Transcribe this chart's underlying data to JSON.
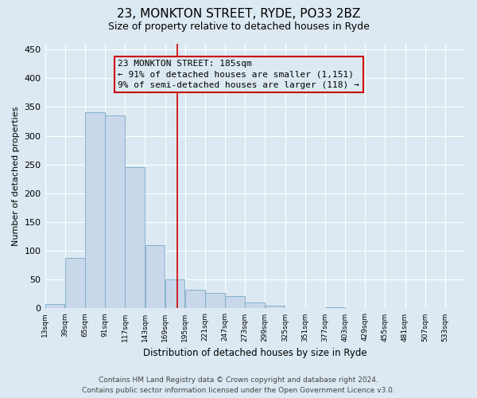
{
  "title": "23, MONKTON STREET, RYDE, PO33 2BZ",
  "subtitle": "Size of property relative to detached houses in Ryde",
  "xlabel": "Distribution of detached houses by size in Ryde",
  "ylabel": "Number of detached properties",
  "bar_starts": [
    13,
    39,
    65,
    91,
    117,
    143,
    169,
    195,
    221,
    247,
    273,
    299,
    325,
    351,
    377,
    403,
    429,
    455,
    481,
    507,
    533
  ],
  "bar_heights": [
    7,
    88,
    341,
    335,
    245,
    110,
    50,
    33,
    27,
    22,
    10,
    5,
    1,
    0,
    2,
    0,
    0,
    1,
    0,
    0,
    1
  ],
  "bin_width": 26,
  "vline_x": 185,
  "bar_color": "#c8d8ea",
  "bar_edge_color": "#7aaac8",
  "vline_color": "#cc0000",
  "annotation_box_edge_color": "#cc0000",
  "annotation_text_line1": "23 MONKTON STREET: 185sqm",
  "annotation_text_line2": "← 91% of detached houses are smaller (1,151)",
  "annotation_text_line3": "9% of semi-detached houses are larger (118) →",
  "ylim": [
    0,
    460
  ],
  "yticks": [
    0,
    50,
    100,
    150,
    200,
    250,
    300,
    350,
    400,
    450
  ],
  "tick_labels": [
    "13sqm",
    "39sqm",
    "65sqm",
    "91sqm",
    "117sqm",
    "143sqm",
    "169sqm",
    "195sqm",
    "221sqm",
    "247sqm",
    "273sqm",
    "299sqm",
    "325sqm",
    "351sqm",
    "377sqm",
    "403sqm",
    "429sqm",
    "455sqm",
    "481sqm",
    "507sqm",
    "533sqm"
  ],
  "footer_line1": "Contains HM Land Registry data © Crown copyright and database right 2024.",
  "footer_line2": "Contains public sector information licensed under the Open Government Licence v3.0.",
  "background_color": "#dce9f2",
  "plot_bg_color": "#dce9f2",
  "grid_color": "#ffffff",
  "title_fontsize": 11,
  "subtitle_fontsize": 9,
  "ylabel_fontsize": 8,
  "xlabel_fontsize": 8.5,
  "footer_fontsize": 6.5,
  "annotation_fontsize": 8,
  "xtick_fontsize": 6.5,
  "ytick_fontsize": 8
}
